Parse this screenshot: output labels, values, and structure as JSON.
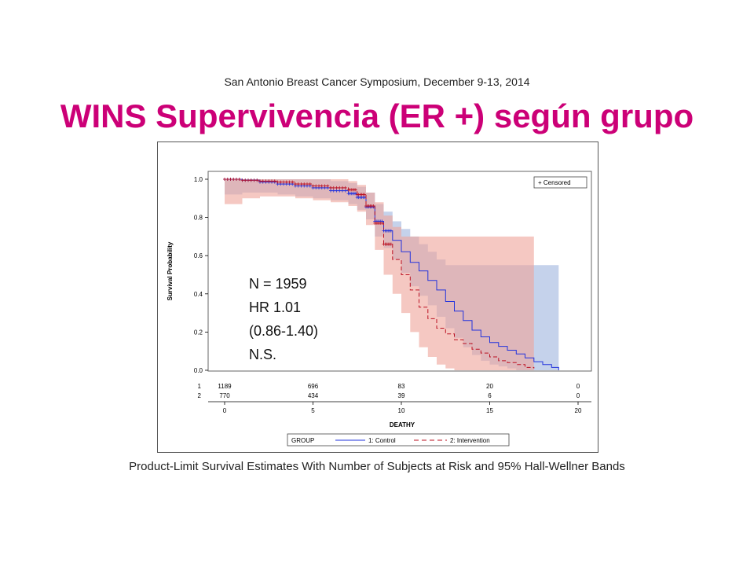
{
  "header": {
    "conference": "San Antonio Breast Cancer Symposium, December 9-13, 2014",
    "title": "WINS Supervivencia (ER +) según grupo"
  },
  "caption": "Product-Limit Survival Estimates With Number of Subjects at Risk and 95% Hall-Wellner Bands",
  "colors": {
    "title": "#cc0077",
    "control": "#2233dd",
    "intervention": "#bb1122",
    "control_band": "#9fb4de",
    "intervention_band": "#eea39a"
  },
  "chart_data": {
    "type": "line",
    "xlabel": "DEATHY",
    "ylabel": "Survival Probability",
    "xlim": [
      0,
      20
    ],
    "ylim": [
      0,
      1
    ],
    "x_ticks": [
      "0",
      "5",
      "10",
      "15",
      "20"
    ],
    "y_ticks": [
      "0.0",
      "0.2",
      "0.4",
      "0.6",
      "0.8",
      "1.0"
    ],
    "grid": false,
    "legend": {
      "title": "GROUP",
      "placement": "bottom",
      "entries": [
        "1: Control",
        "2: Intervention"
      ]
    },
    "censor_legend": "+ Censored",
    "stats_annotation": [
      "N = 1959",
      "HR 1.01",
      "(0.86-1.40)",
      "N.S."
    ],
    "at_risk": {
      "times": [
        0,
        5,
        10,
        15,
        20
      ],
      "rows": [
        {
          "label": "1",
          "values": [
            "1189",
            "696",
            "83",
            "20",
            "0"
          ]
        },
        {
          "label": "2",
          "values": [
            "770",
            "434",
            "39",
            "6",
            "0"
          ]
        }
      ]
    },
    "series": [
      {
        "name": "1: Control",
        "x": [
          0,
          1,
          2,
          3,
          4,
          5,
          6,
          7,
          7.5,
          8,
          8.5,
          9,
          9.5,
          10,
          10.5,
          11,
          11.5,
          12,
          12.5,
          13,
          13.5,
          14,
          14.5,
          15,
          15.5,
          16,
          16.5,
          17,
          17.5,
          18,
          18.5,
          18.9
        ],
        "y": [
          1.0,
          0.995,
          0.985,
          0.975,
          0.965,
          0.955,
          0.94,
          0.925,
          0.905,
          0.855,
          0.78,
          0.73,
          0.68,
          0.62,
          0.565,
          0.52,
          0.47,
          0.42,
          0.36,
          0.31,
          0.26,
          0.21,
          0.175,
          0.145,
          0.125,
          0.105,
          0.085,
          0.065,
          0.045,
          0.03,
          0.015,
          0.0
        ],
        "band_lower": [
          0.92,
          0.93,
          0.93,
          0.92,
          0.91,
          0.9,
          0.89,
          0.87,
          0.84,
          0.79,
          0.7,
          0.64,
          0.58,
          0.51,
          0.44,
          0.39,
          0.34,
          0.28,
          0.22,
          0.17,
          0.12,
          0.08,
          0.05,
          0.03,
          0.02,
          0.01,
          0.0,
          0.0,
          0.0,
          0.0,
          0.0,
          0.0
        ],
        "band_upper": [
          1.0,
          1.0,
          1.0,
          1.0,
          1.0,
          1.0,
          0.99,
          0.98,
          0.96,
          0.93,
          0.87,
          0.83,
          0.78,
          0.74,
          0.7,
          0.66,
          0.62,
          0.58,
          0.55,
          0.55,
          0.55,
          0.55,
          0.55,
          0.55,
          0.55,
          0.55,
          0.55,
          0.55,
          0.55,
          0.55,
          0.55,
          0.55
        ]
      },
      {
        "name": "2: Intervention",
        "x": [
          0,
          1,
          2,
          3,
          4,
          5,
          6,
          7,
          7.5,
          8,
          8.5,
          9,
          9.5,
          10,
          10.5,
          11,
          11.5,
          12,
          12.5,
          13,
          13.5,
          14,
          14.5,
          15,
          15.5,
          16,
          16.5,
          17,
          17.5
        ],
        "y": [
          1.0,
          0.995,
          0.99,
          0.985,
          0.975,
          0.965,
          0.955,
          0.945,
          0.92,
          0.86,
          0.77,
          0.66,
          0.58,
          0.5,
          0.42,
          0.33,
          0.27,
          0.22,
          0.19,
          0.16,
          0.14,
          0.11,
          0.09,
          0.07,
          0.05,
          0.04,
          0.03,
          0.015,
          0.01
        ],
        "band_lower": [
          0.87,
          0.9,
          0.91,
          0.91,
          0.9,
          0.89,
          0.88,
          0.86,
          0.83,
          0.76,
          0.63,
          0.5,
          0.4,
          0.3,
          0.2,
          0.12,
          0.07,
          0.03,
          0.01,
          0.0,
          0.0,
          0.0,
          0.0,
          0.0,
          0.0,
          0.0,
          0.0,
          0.0,
          0.0
        ],
        "band_upper": [
          1.0,
          1.0,
          1.0,
          1.0,
          1.0,
          1.0,
          1.0,
          0.99,
          0.97,
          0.93,
          0.88,
          0.81,
          0.75,
          0.7,
          0.7,
          0.7,
          0.7,
          0.7,
          0.7,
          0.7,
          0.7,
          0.7,
          0.7,
          0.7,
          0.7,
          0.7,
          0.7,
          0.7,
          0.7
        ]
      }
    ]
  }
}
